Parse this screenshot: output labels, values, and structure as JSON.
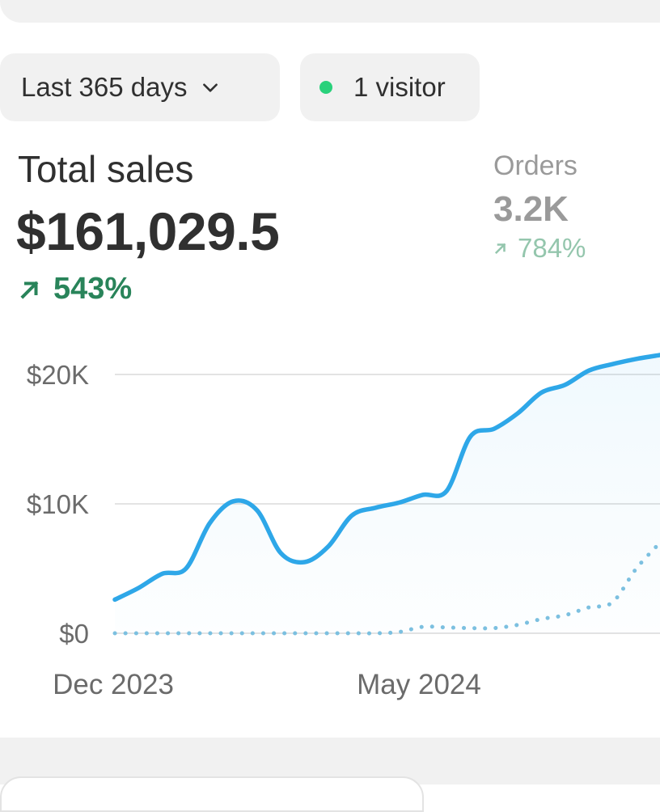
{
  "filters": {
    "date_range_label": "Last 365 days",
    "visitors_label": "1 visitor",
    "live_dot_color": "#29d17b"
  },
  "total_sales": {
    "title": "Total sales",
    "value": "$161,029.5",
    "change": "543%",
    "change_color": "#29845a"
  },
  "orders": {
    "title": "Orders",
    "value": "3.2K",
    "change": "784%"
  },
  "chart_data": {
    "type": "line",
    "x_tick_labels": [
      "Dec 2023",
      "May 2024"
    ],
    "y_tick_labels": [
      "$20K",
      "$10K",
      "$0"
    ],
    "y_ticks": [
      20000,
      10000,
      0
    ],
    "ylim": [
      0,
      20000
    ],
    "grid": true,
    "series": [
      {
        "style": "solid",
        "color": "#2ea7e8",
        "values": [
          2600,
          3500,
          4600,
          5000,
          8500,
          10200,
          9500,
          6200,
          5500,
          6700,
          9100,
          9700,
          10100,
          10700,
          11000,
          15200,
          15800,
          17000,
          18600,
          19200,
          20300,
          20800,
          21200,
          21500
        ]
      },
      {
        "style": "dotted",
        "color": "#7cc0e0",
        "values": [
          0,
          0,
          0,
          0,
          0,
          0,
          0,
          0,
          0,
          0,
          0,
          0,
          100,
          500,
          450,
          400,
          400,
          650,
          1100,
          1400,
          2000,
          2400,
          5000,
          7000
        ]
      }
    ]
  }
}
